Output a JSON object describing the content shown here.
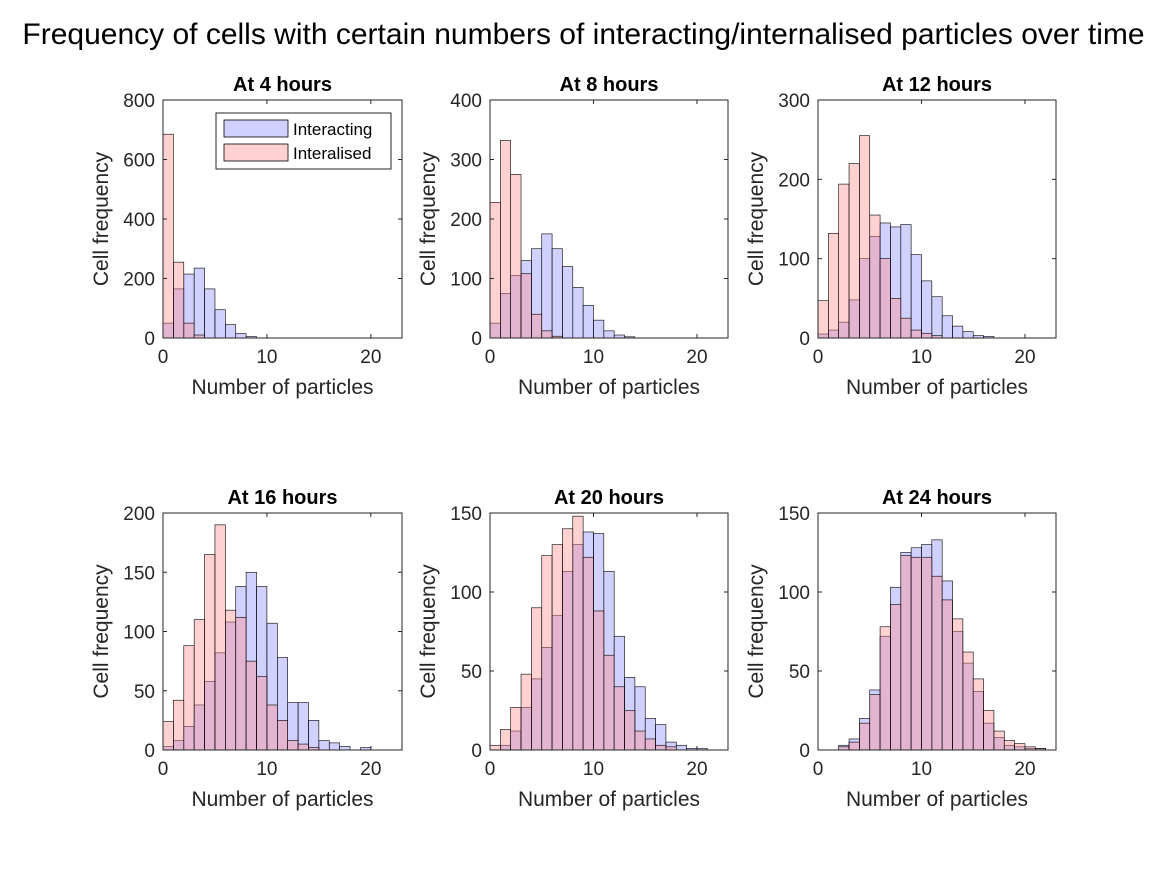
{
  "figure": {
    "title": "Frequency of cells with certain numbers of interacting/internalised particles over time"
  },
  "colors": {
    "interacting": "#8c8cff",
    "internalised": "#ff8c8c",
    "edge": "#000000"
  },
  "chart_data": [
    {
      "type": "bar",
      "title": "At 4 hours",
      "xlabel": "Number of particles",
      "ylabel": "Cell frequency",
      "xlim": [
        0,
        23
      ],
      "ylim": [
        0,
        800
      ],
      "xticks": [
        0,
        10,
        20
      ],
      "yticks": [
        0,
        200,
        400,
        600,
        800
      ],
      "legend": {
        "entries": [
          "Interacting",
          "Interalised"
        ],
        "location": "top-right"
      },
      "bin_width": 1,
      "series": [
        {
          "name": "Interacting",
          "bin_start": 0,
          "values": [
            50,
            165,
            215,
            235,
            165,
            95,
            45,
            15,
            5
          ]
        },
        {
          "name": "Interalised",
          "bin_start": 0,
          "values": [
            685,
            255,
            50,
            10
          ]
        }
      ]
    },
    {
      "type": "bar",
      "title": "At 8 hours",
      "xlabel": "Number of particles",
      "ylabel": "Cell frequency",
      "xlim": [
        0,
        23
      ],
      "ylim": [
        0,
        400
      ],
      "xticks": [
        0,
        10,
        20
      ],
      "yticks": [
        0,
        100,
        200,
        300,
        400
      ],
      "bin_width": 1,
      "series": [
        {
          "name": "Interacting",
          "bin_start": 0,
          "values": [
            25,
            75,
            105,
            130,
            150,
            175,
            150,
            120,
            85,
            55,
            30,
            12,
            5,
            2
          ]
        },
        {
          "name": "Interalised",
          "bin_start": 0,
          "values": [
            228,
            332,
            275,
            108,
            40,
            12,
            3
          ]
        }
      ]
    },
    {
      "type": "bar",
      "title": "At 12 hours",
      "xlabel": "Number of particles",
      "ylabel": "Cell frequency",
      "xlim": [
        0,
        23
      ],
      "ylim": [
        0,
        300
      ],
      "xticks": [
        0,
        10,
        20
      ],
      "yticks": [
        0,
        100,
        200,
        300
      ],
      "bin_width": 1,
      "series": [
        {
          "name": "Interacting",
          "bin_start": 0,
          "values": [
            5,
            10,
            20,
            48,
            100,
            128,
            145,
            140,
            143,
            105,
            72,
            52,
            28,
            15,
            8,
            3,
            2
          ]
        },
        {
          "name": "Interalised",
          "bin_start": 0,
          "values": [
            47,
            132,
            194,
            220,
            255,
            155,
            100,
            50,
            25,
            10,
            6,
            3
          ]
        }
      ]
    },
    {
      "type": "bar",
      "title": "At 16 hours",
      "xlabel": "Number of particles",
      "ylabel": "Cell frequency",
      "xlim": [
        0,
        23
      ],
      "ylim": [
        0,
        200
      ],
      "xticks": [
        0,
        10,
        20
      ],
      "yticks": [
        0,
        50,
        100,
        150,
        200
      ],
      "bin_width": 1,
      "series": [
        {
          "name": "Interacting",
          "bin_start": 0,
          "values": [
            3,
            8,
            20,
            38,
            58,
            82,
            108,
            138,
            150,
            138,
            107,
            78,
            40,
            40,
            25,
            8,
            6,
            3,
            0,
            2
          ]
        },
        {
          "name": "Interalised",
          "bin_start": 0,
          "values": [
            24,
            42,
            88,
            110,
            165,
            190,
            118,
            112,
            75,
            62,
            38,
            25,
            8,
            5,
            2
          ]
        }
      ]
    },
    {
      "type": "bar",
      "title": "At 20 hours",
      "xlabel": "Number of particles",
      "ylabel": "Cell frequency",
      "xlim": [
        0,
        23
      ],
      "ylim": [
        0,
        150
      ],
      "xticks": [
        0,
        10,
        20
      ],
      "yticks": [
        0,
        50,
        100,
        150
      ],
      "bin_width": 1,
      "series": [
        {
          "name": "Interacting",
          "bin_start": 0,
          "values": [
            0,
            3,
            12,
            27,
            45,
            65,
            85,
            113,
            130,
            138,
            137,
            113,
            72,
            46,
            40,
            20,
            16,
            5,
            3,
            1,
            1
          ]
        },
        {
          "name": "Interalised",
          "bin_start": 0,
          "values": [
            3,
            13,
            27,
            48,
            90,
            123,
            130,
            140,
            148,
            122,
            88,
            60,
            40,
            25,
            12,
            7,
            3,
            2
          ]
        }
      ]
    },
    {
      "type": "bar",
      "title": "At 24 hours",
      "xlabel": "Number of particles",
      "ylabel": "Cell frequency",
      "xlim": [
        0,
        23
      ],
      "ylim": [
        0,
        150
      ],
      "xticks": [
        0,
        10,
        20
      ],
      "yticks": [
        0,
        50,
        100,
        150
      ],
      "bin_width": 1,
      "series": [
        {
          "name": "Interacting",
          "bin_start": 0,
          "values": [
            0,
            0,
            3,
            7,
            20,
            38,
            72,
            103,
            125,
            128,
            130,
            133,
            107,
            75,
            55,
            37,
            17,
            8,
            3,
            2,
            1,
            1
          ]
        },
        {
          "name": "Interalised",
          "bin_start": 0,
          "values": [
            0,
            0,
            2,
            5,
            17,
            35,
            78,
            92,
            123,
            122,
            122,
            110,
            95,
            83,
            62,
            45,
            25,
            12,
            6,
            4,
            2,
            1
          ]
        }
      ]
    }
  ]
}
